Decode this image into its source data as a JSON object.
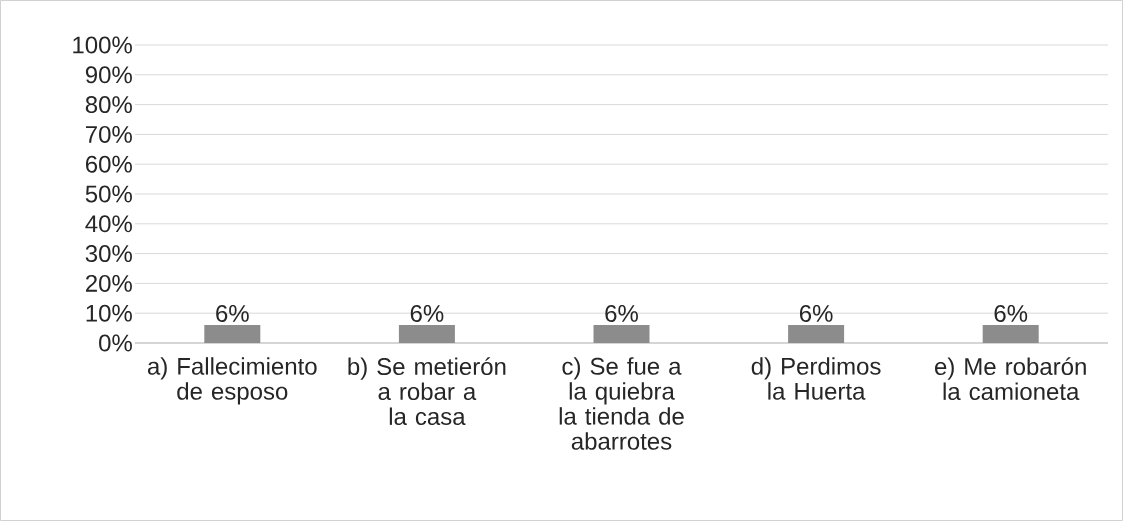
{
  "chart_data": {
    "type": "bar",
    "categories": [
      "a) Fallecimiento de esposo",
      "b) Se metierón a robar a la casa",
      "c) Se fue a la quiebra la tienda de abarrotes",
      "d) Perdimos la Huerta",
      "e) Me robarón la camioneta"
    ],
    "values": [
      6,
      6,
      6,
      6,
      6
    ],
    "value_labels": [
      "6%",
      "6%",
      "6%",
      "6%",
      "6%"
    ],
    "color": "#8c8c8c",
    "ylim": [
      0,
      100
    ],
    "yticks": [
      {
        "value": 0,
        "label": "0%"
      },
      {
        "value": 10,
        "label": "10%"
      },
      {
        "value": 20,
        "label": "20%"
      },
      {
        "value": 30,
        "label": "30%"
      },
      {
        "value": 40,
        "label": "40%"
      },
      {
        "value": 50,
        "label": "50%"
      },
      {
        "value": 60,
        "label": "60%"
      },
      {
        "value": 70,
        "label": "70%"
      },
      {
        "value": 80,
        "label": "80%"
      },
      {
        "value": 90,
        "label": "90%"
      },
      {
        "value": 100,
        "label": "100%"
      }
    ],
    "grid": "y"
  }
}
